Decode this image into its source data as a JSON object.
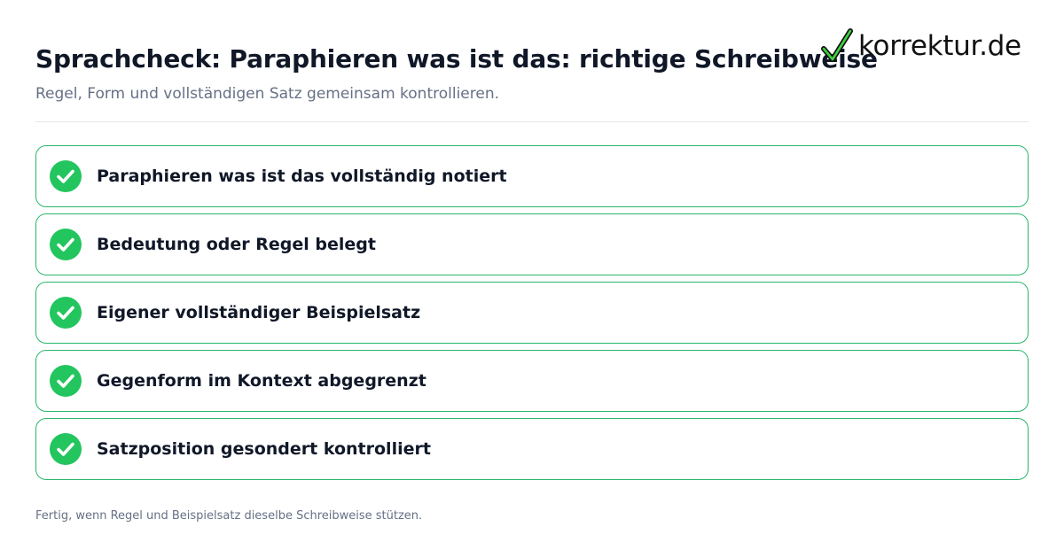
{
  "header": {
    "title": "Sprachcheck: Paraphieren was ist das: richtige Schreibweise",
    "subtitle": "Regel, Form und vollständigen Satz gemeinsam kontrollieren."
  },
  "logo": {
    "text": "korrektur.de",
    "icon": "checkmark-icon"
  },
  "checklist": {
    "items": [
      {
        "label": "Paraphieren was ist das vollständig notiert",
        "checked": true
      },
      {
        "label": "Bedeutung oder Regel belegt",
        "checked": true
      },
      {
        "label": "Eigener vollständiger Beispielsatz",
        "checked": true
      },
      {
        "label": "Gegenform im Kontext abgegrenzt",
        "checked": true
      },
      {
        "label": "Satzposition gesondert kontrolliert",
        "checked": true
      }
    ]
  },
  "footer": {
    "text": "Fertig, wenn Regel und Beispielsatz dieselbe Schreibweise stützen."
  },
  "colors": {
    "accent_green": "#22c55e",
    "border_green": "#28b76b",
    "title": "#101828",
    "muted": "#667085"
  }
}
